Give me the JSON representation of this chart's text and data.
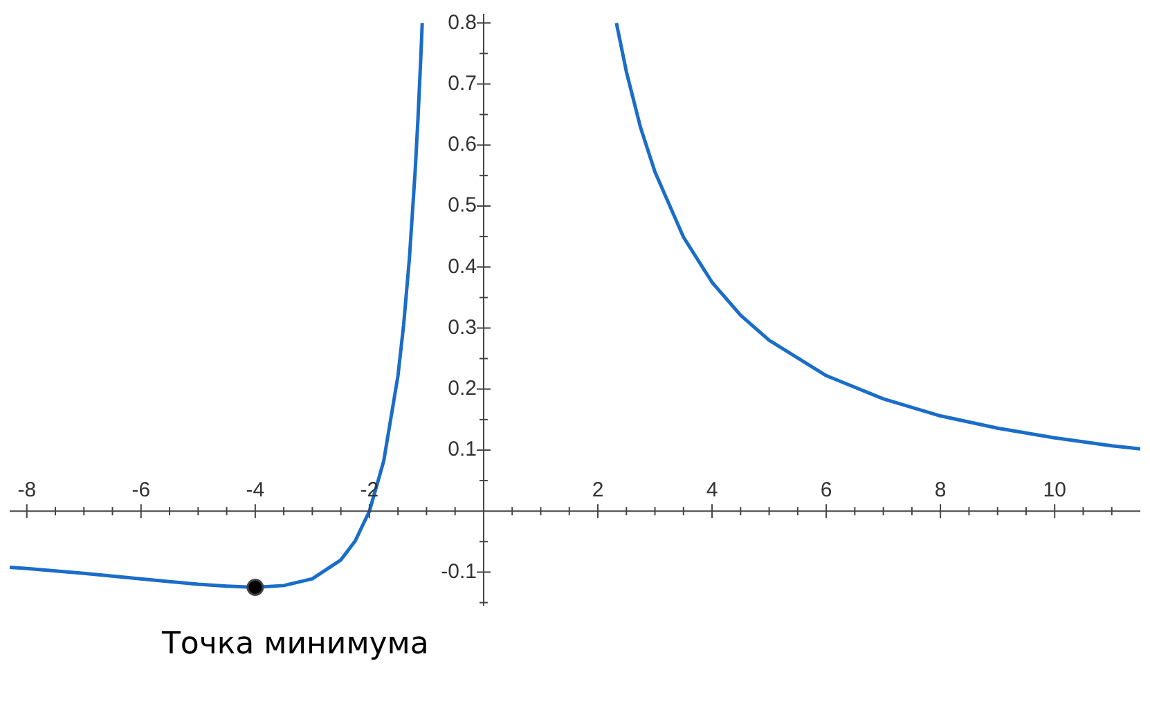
{
  "chart_data": {
    "type": "line",
    "xlim": [
      -8.3,
      11.5
    ],
    "ylim": [
      -0.155,
      0.815
    ],
    "xticks": [
      -8,
      {
        "value": -7.5,
        "label": null
      },
      {
        "value": -7,
        "label": null
      },
      {
        "value": -6.5,
        "label": null
      },
      -6,
      {
        "value": -5.5,
        "label": null
      },
      {
        "value": -5,
        "label": null
      },
      {
        "value": -4.5,
        "label": null
      },
      -4,
      {
        "value": -3.5,
        "label": null
      },
      {
        "value": -3,
        "label": null
      },
      {
        "value": -2.5,
        "label": null
      },
      -2,
      {
        "value": -1.5,
        "label": null
      },
      {
        "value": -1,
        "label": null
      },
      {
        "value": -0.5,
        "label": null
      },
      {
        "value": 0.5,
        "label": null
      },
      {
        "value": 1,
        "label": null
      },
      {
        "value": 1.5,
        "label": null
      },
      2,
      {
        "value": 2.5,
        "label": null
      },
      {
        "value": 3,
        "label": null
      },
      {
        "value": 3.5,
        "label": null
      },
      4,
      {
        "value": 4.5,
        "label": null
      },
      {
        "value": 5,
        "label": null
      },
      {
        "value": 5.5,
        "label": null
      },
      6,
      {
        "value": 6.5,
        "label": null
      },
      {
        "value": 7,
        "label": null
      },
      {
        "value": 7.5,
        "label": null
      },
      8,
      {
        "value": 8.5,
        "label": null
      },
      {
        "value": 9,
        "label": null
      },
      {
        "value": 9.5,
        "label": null
      },
      10,
      {
        "value": 10.5,
        "label": null
      },
      {
        "value": 11,
        "label": null
      }
    ],
    "yticks": [
      {
        "value": -0.15,
        "label": null
      },
      -0.1,
      {
        "value": -0.05,
        "label": null
      },
      {
        "value": 0.05,
        "label": null
      },
      0.1,
      {
        "value": 0.15,
        "label": null
      },
      0.2,
      {
        "value": 0.25,
        "label": null
      },
      0.3,
      {
        "value": 0.35,
        "label": null
      },
      0.4,
      {
        "value": 0.45,
        "label": null
      },
      0.5,
      {
        "value": 0.55,
        "label": null
      },
      0.6,
      {
        "value": 0.65,
        "label": null
      },
      0.7,
      {
        "value": 0.75,
        "label": null
      },
      0.8
    ],
    "grid": false,
    "legend": false,
    "series": [
      {
        "type": "line",
        "marker": "none",
        "color": "#1a6dc8",
        "x": [
          -8.3,
          -8,
          -7,
          -6,
          -5,
          -4.5,
          -4,
          -3.5,
          -3,
          -2.5,
          -2.25,
          -2,
          -1.75,
          -1.5,
          -1.4,
          -1.3,
          -1.2,
          -1.15,
          -1.1,
          -1.075,
          0,
          2.325,
          2.5,
          2.75,
          3,
          3.5,
          4,
          4.5,
          5,
          6,
          7,
          8,
          9,
          10,
          11,
          11.5
        ],
        "values": [
          -0.092,
          -0.094,
          -0.102,
          -0.111,
          -0.12,
          -0.123,
          -0.125,
          -0.122,
          -0.111,
          -0.08,
          -0.049,
          0,
          0.082,
          0.222,
          0.306,
          0.414,
          0.556,
          0.643,
          0.744,
          0.8,
          null,
          0.8,
          0.72,
          0.628,
          0.556,
          0.449,
          0.375,
          0.321,
          0.28,
          0.222,
          0.184,
          0.156,
          0.136,
          0.12,
          0.107,
          0.102
        ]
      },
      {
        "type": "scatter",
        "marker": "circle",
        "color": "#000000",
        "x": [
          -4
        ],
        "values": [
          -0.125
        ]
      }
    ],
    "annotations": [
      {
        "text": "Точка минимума",
        "x": -4,
        "y": -0.125
      }
    ]
  }
}
